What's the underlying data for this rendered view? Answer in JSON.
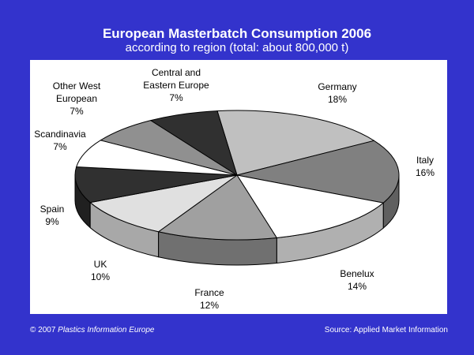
{
  "chart_data": {
    "type": "pie",
    "title": "European Masterbatch Consumption 2006",
    "subtitle": "according to region (total: about 800,000 t)",
    "categories": [
      "Germany",
      "Italy",
      "Benelux",
      "France",
      "UK",
      "Spain",
      "Scandinavia",
      "Other West European",
      "Central and Eastern Europe"
    ],
    "values": [
      18,
      16,
      14,
      12,
      10,
      9,
      7,
      7,
      7
    ],
    "label_lines": [
      [
        "Germany",
        "18%"
      ],
      [
        "Italy",
        "16%"
      ],
      [
        "Benelux",
        "14%"
      ],
      [
        "France",
        "12%"
      ],
      [
        "UK",
        "10%"
      ],
      [
        "Spain",
        "9%"
      ],
      [
        "Scandinavia",
        "7%"
      ],
      [
        "Other West",
        "European",
        "7%"
      ],
      [
        "Central and",
        "Eastern Europe",
        "7%"
      ]
    ],
    "colors": [
      "#c0c0c0",
      "#808080",
      "#ffffff",
      "#a0a0a0",
      "#e0e0e0",
      "#303030",
      "#ffffff",
      "#909090",
      "#303030"
    ],
    "side_colors": [
      "#909090",
      "#606060",
      "#b0b0b0",
      "#707070",
      "#a8a8a8",
      "#202020",
      "#b0b0b0",
      "#686868",
      "#202020"
    ],
    "style": "3d"
  },
  "footer": {
    "copyright": "© 2007 ",
    "publisher": "Plastics Information Europe",
    "source": "Source: Applied Market Information"
  }
}
